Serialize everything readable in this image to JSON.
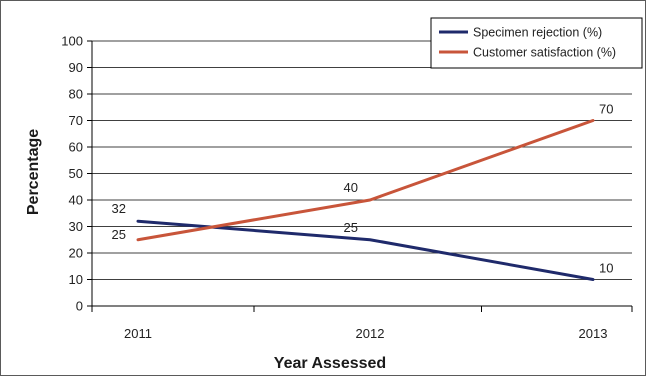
{
  "chart_data": {
    "type": "line",
    "title": "",
    "xlabel": "Year Assessed",
    "ylabel": "Percentage",
    "categories": [
      "2011",
      "2012",
      "2013"
    ],
    "ylim": [
      0,
      100
    ],
    "yticks": [
      0,
      10,
      20,
      30,
      40,
      50,
      60,
      70,
      80,
      90,
      100
    ],
    "grid": true,
    "legend_position": "top-right",
    "series": [
      {
        "name": "Specimen rejection (%)",
        "values": [
          32,
          25,
          10
        ],
        "labels": [
          "32",
          "25",
          "10"
        ],
        "color": "#1f2a6b"
      },
      {
        "name": "Customer satisfaction (%)",
        "values": [
          25,
          40,
          70
        ],
        "labels": [
          "25",
          "40",
          "70"
        ],
        "color": "#c8553a"
      }
    ]
  }
}
